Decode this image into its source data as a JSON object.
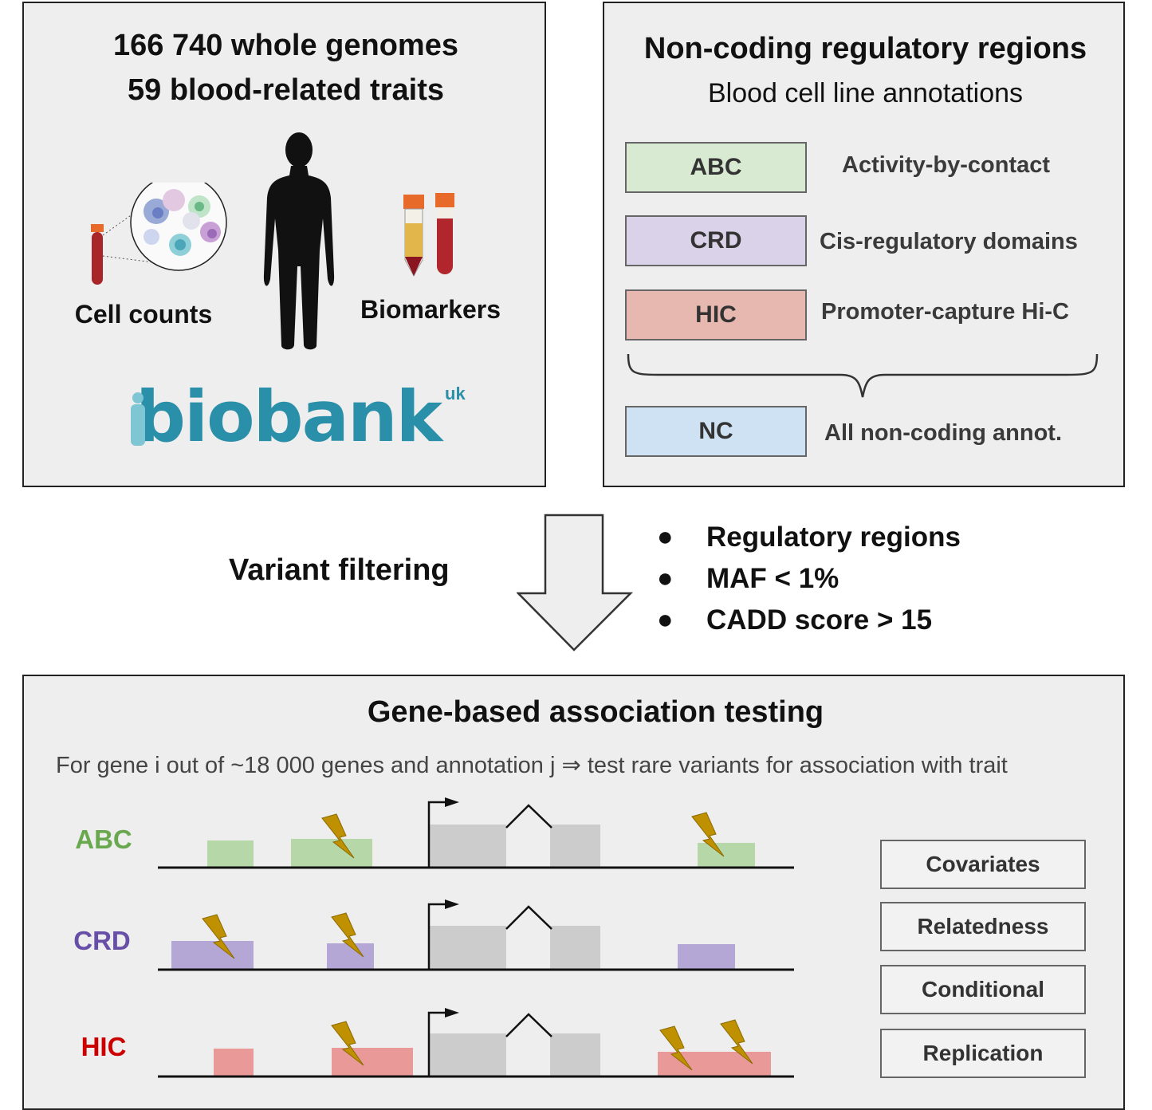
{
  "left_panel": {
    "line1": "166 740 whole genomes",
    "line2": "59 blood-related traits",
    "cell_counts": "Cell counts",
    "biomarkers": "Biomarkers",
    "logo_text": "biobank",
    "logo_suffix": "uk"
  },
  "right_panel": {
    "title": "Non-coding regulatory regions",
    "subtitle": "Blood cell line annotations",
    "annotations": [
      {
        "code": "ABC",
        "desc": "Activity-by-contact",
        "color": "#d9ead3"
      },
      {
        "code": "CRD",
        "desc": "Cis-regulatory domains",
        "color": "#d9d2e9"
      },
      {
        "code": "HIC",
        "desc": "Promoter-capture Hi-C",
        "color": "#e6b8af"
      },
      {
        "code": "NC",
        "desc": "All non-coding annot.",
        "color": "#cfe2f3"
      }
    ]
  },
  "middle": {
    "label": "Variant filtering",
    "bullets": [
      "Regulatory regions",
      "MAF < 1%",
      "CADD score > 15"
    ]
  },
  "bottom_panel": {
    "title": "Gene-based association testing",
    "subtitle": "For gene i out of ~18 000 genes and annotation j ⇒ test rare variants for association with trait",
    "tracks": [
      {
        "label": "ABC",
        "color": "#6aa84f",
        "region_color": "#b6d7a8"
      },
      {
        "label": "CRD",
        "color": "#674ea7",
        "region_color": "#b4a7d6"
      },
      {
        "label": "HIC",
        "color": "#cc0000",
        "region_color": "#ea9999"
      }
    ],
    "boxes": [
      "Covariates",
      "Relatedness",
      "Conditional",
      "Replication"
    ]
  },
  "colors": {
    "panel_bg": "#eeeeee",
    "exon": "#cccccc",
    "bolt": "#bf9000",
    "logo": "#2a8fa8"
  }
}
